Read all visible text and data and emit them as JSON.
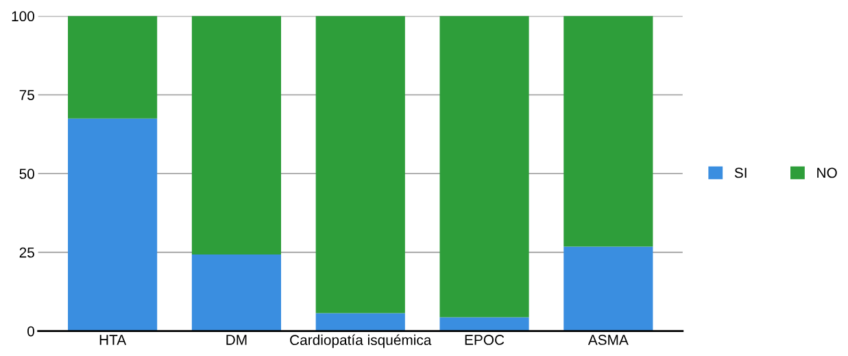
{
  "chart_data": {
    "type": "bar",
    "stacked": true,
    "categories": [
      "HTA",
      "DM",
      "Cardiopatía isquémica",
      "EPOC",
      "ASMA"
    ],
    "series": [
      {
        "name": "SI",
        "color": "#3a8ee0",
        "values": [
          67.5,
          24.3,
          5.7,
          4.4,
          26.8
        ]
      },
      {
        "name": "NO",
        "color": "#2e9e3a",
        "values": [
          32.5,
          75.7,
          94.3,
          95.6,
          73.2
        ]
      }
    ],
    "ylim": [
      0,
      100
    ],
    "yticks": [
      0,
      25,
      50,
      75,
      100
    ],
    "grid": "y",
    "legend": "right"
  }
}
